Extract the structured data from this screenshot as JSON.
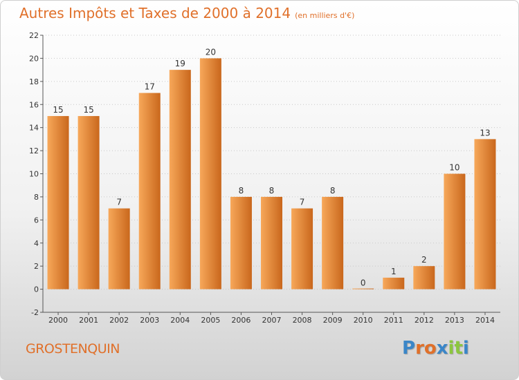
{
  "title": "Autres Impôts et Taxes de 2000 à 2014",
  "unit": "(en milliers d'€)",
  "commune": "GROSTENQUIN",
  "brand": {
    "letters": [
      "P",
      "r",
      "o",
      "x",
      "i",
      "t",
      "i"
    ],
    "colors": [
      "#3a86c8",
      "#e0702a",
      "#e0702a",
      "#3a86c8",
      "#8cc63f",
      "#8cc63f",
      "#3a86c8"
    ]
  },
  "colors": {
    "accent": "#e0702a",
    "bar_light": "#f7a85a",
    "bar_dark": "#c9671c"
  },
  "chart_data": {
    "type": "bar",
    "categories": [
      "2000",
      "2001",
      "2002",
      "2003",
      "2004",
      "2005",
      "2006",
      "2007",
      "2008",
      "2009",
      "2010",
      "2011",
      "2012",
      "2013",
      "2014"
    ],
    "values": [
      15,
      15,
      7,
      17,
      19,
      20,
      8,
      8,
      7,
      8,
      0,
      1,
      2,
      10,
      13
    ],
    "data_labels": [
      "15",
      "15",
      "7",
      "17",
      "19",
      "20",
      "8",
      "8",
      "7",
      "8",
      "0",
      "1",
      "2",
      "10",
      "13"
    ],
    "y_ticks": [
      "-2",
      "0",
      "2",
      "4",
      "6",
      "8",
      "10",
      "12",
      "14",
      "16",
      "18",
      "20",
      "22"
    ],
    "ylim": [
      -2,
      22
    ],
    "grid": true,
    "grid_style": "dotted-horizontal",
    "legend": "none"
  }
}
